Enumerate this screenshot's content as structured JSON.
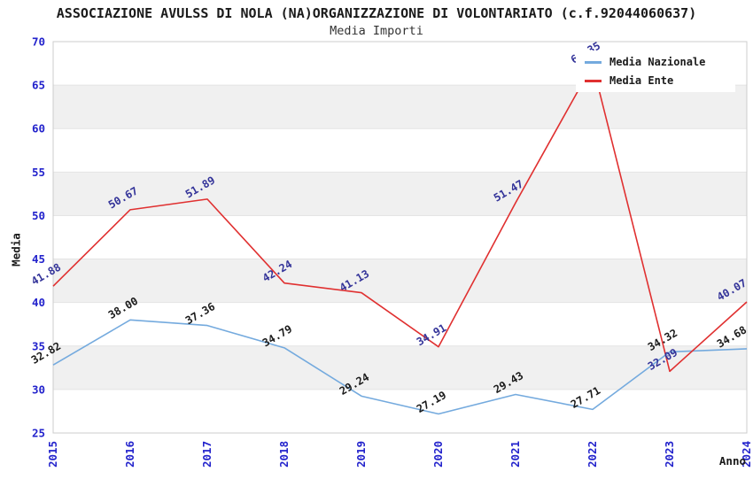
{
  "header": {
    "title": "ASSOCIAZIONE AVULSS DI NOLA (NA)ORGANIZZAZIONE DI VOLONTARIATO (c.f.92044060637)",
    "subtitle": "Media Importi"
  },
  "chart_data": {
    "type": "line",
    "x": [
      "2015",
      "2016",
      "2017",
      "2018",
      "2019",
      "2020",
      "2021",
      "2022",
      "2023",
      "2024"
    ],
    "series": [
      {
        "name": "Media Nazionale",
        "color": "#74aade",
        "label_color": "#1a1a1a",
        "values": [
          32.82,
          38.0,
          37.36,
          34.79,
          29.24,
          27.19,
          29.43,
          27.71,
          34.32,
          34.68
        ]
      },
      {
        "name": "Media Ente",
        "color": "#e03030",
        "label_color": "#333399",
        "values": [
          41.88,
          50.67,
          51.89,
          42.24,
          41.13,
          34.91,
          51.47,
          67.35,
          32.09,
          40.07
        ]
      }
    ],
    "xlabel": "Anno",
    "ylabel": "Media",
    "ylim": [
      25,
      70
    ],
    "ytick_step": 5,
    "yticks": [
      25,
      30,
      35,
      40,
      45,
      50,
      55,
      60,
      65,
      70
    ],
    "grid": true,
    "bands": [
      [
        30,
        35
      ],
      [
        40,
        45
      ],
      [
        50,
        55
      ],
      [
        60,
        65
      ]
    ],
    "band_color": "#f0f0f0",
    "grid_color": "#e4e4e4",
    "border_color": "#cccccc",
    "tick_label_color": "#2323cc",
    "legend_position": "top-right",
    "value_labels_shown": true
  }
}
